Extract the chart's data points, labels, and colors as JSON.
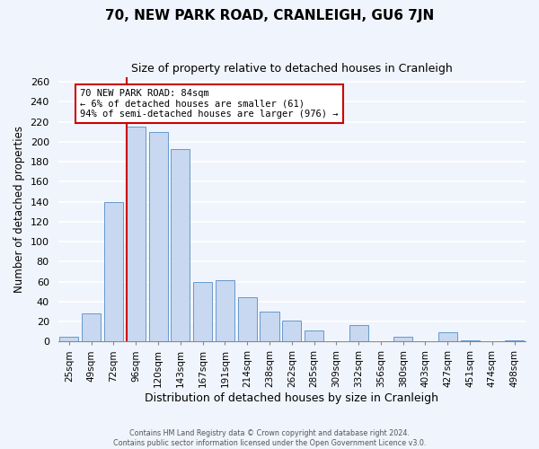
{
  "title": "70, NEW PARK ROAD, CRANLEIGH, GU6 7JN",
  "subtitle": "Size of property relative to detached houses in Cranleigh",
  "xlabel": "Distribution of detached houses by size in Cranleigh",
  "ylabel": "Number of detached properties",
  "bar_labels": [
    "25sqm",
    "49sqm",
    "72sqm",
    "96sqm",
    "120sqm",
    "143sqm",
    "167sqm",
    "191sqm",
    "214sqm",
    "238sqm",
    "262sqm",
    "285sqm",
    "309sqm",
    "332sqm",
    "356sqm",
    "380sqm",
    "403sqm",
    "427sqm",
    "451sqm",
    "474sqm",
    "498sqm"
  ],
  "bar_values": [
    5,
    28,
    140,
    215,
    210,
    193,
    60,
    61,
    44,
    30,
    21,
    11,
    0,
    16,
    0,
    5,
    0,
    9,
    1,
    0,
    1
  ],
  "bar_color": "#c8d8f0",
  "bar_edge_color": "#6699cc",
  "highlight_line_color": "#cc0000",
  "annotation_line1": "70 NEW PARK ROAD: 84sqm",
  "annotation_line2": "← 6% of detached houses are smaller (61)",
  "annotation_line3": "94% of semi-detached houses are larger (976) →",
  "annotation_box_color": "#ffffff",
  "annotation_box_edge_color": "#cc0000",
  "ylim": [
    0,
    265
  ],
  "yticks": [
    0,
    20,
    40,
    60,
    80,
    100,
    120,
    140,
    160,
    180,
    200,
    220,
    240,
    260
  ],
  "footer_line1": "Contains HM Land Registry data © Crown copyright and database right 2024.",
  "footer_line2": "Contains public sector information licensed under the Open Government Licence v3.0.",
  "bg_color": "#f0f4fc",
  "grid_color": "#ffffff"
}
